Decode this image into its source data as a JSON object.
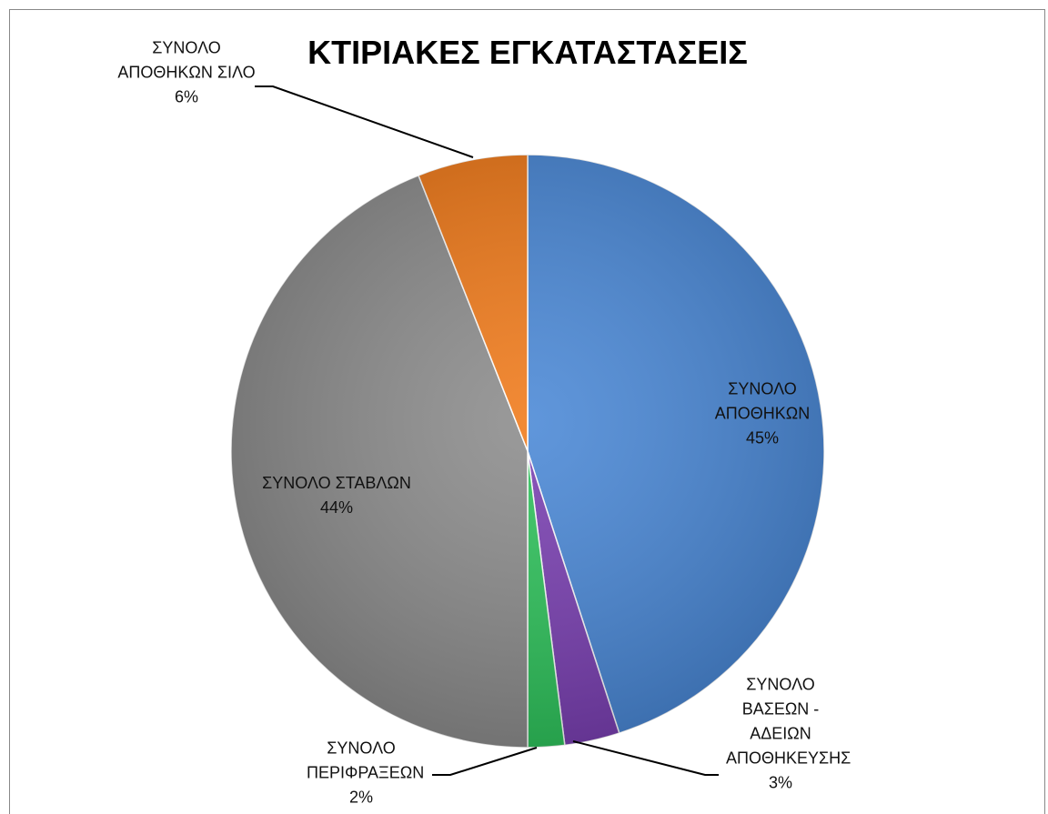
{
  "chart_data": {
    "type": "pie",
    "title": "ΚΤΙΡΙΑΚΕΣ ΕΓΚΑΤΑΣΤΑΣΕΙΣ",
    "categories": [
      "ΣΥΝΟΛΟ ΑΠΟΘΗΚΩΝ",
      "ΣΥΝΟΛΟ ΒΑΣΕΩΝ - ΑΔΕΙΩΝ ΑΠΟΘΗΚΕΥΣΗΣ",
      "ΣΥΝΟΛΟ ΠΕΡΙΦΡΑΞΕΩΝ",
      "ΣΥΝΟΛΟ ΣΤΑΒΛΩΝ",
      "ΣΥΝΟΛΟ ΑΠΟΘΗΚΩΝ ΣΙΛΟ"
    ],
    "values": [
      45,
      3,
      2,
      44,
      6
    ],
    "value_labels": [
      "45%",
      "3%",
      "2%",
      "44%",
      "6%"
    ],
    "colors": [
      "#4a88d6",
      "#7a40b2",
      "#2fc35c",
      "#8c8c8c",
      "#f07a1a"
    ]
  }
}
